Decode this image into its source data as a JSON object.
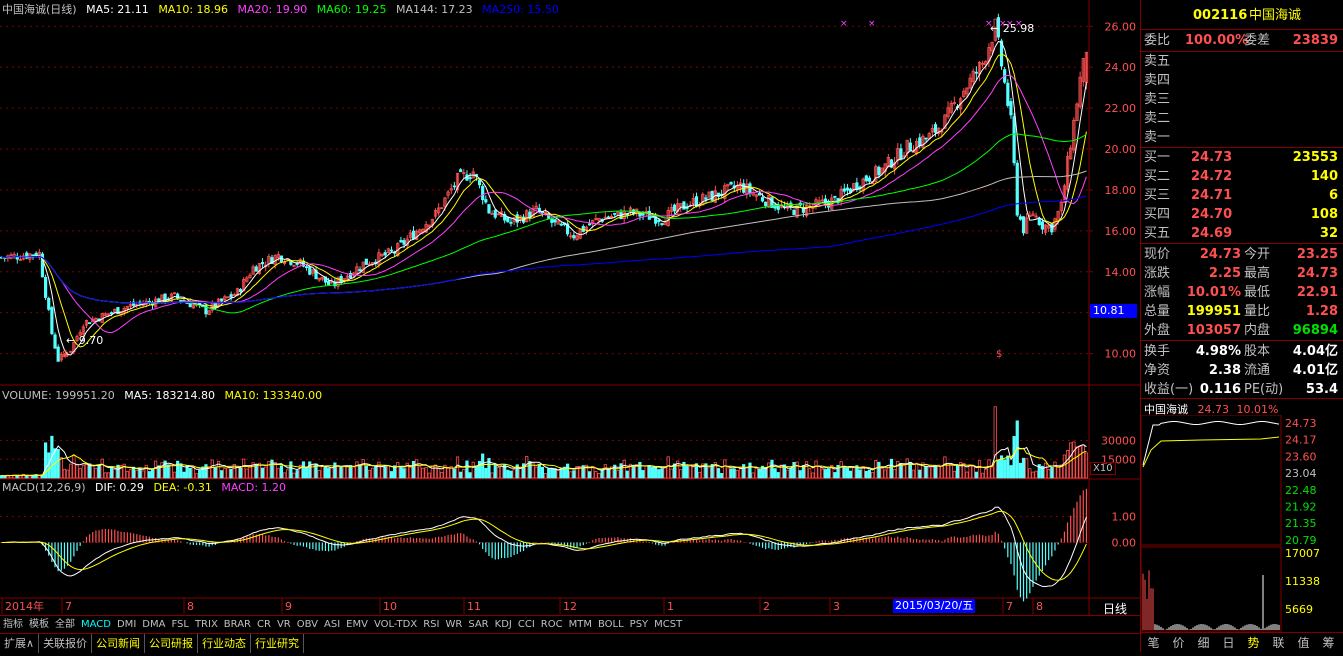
{
  "colors": {
    "up": "#ff5050",
    "down": "#54ffff",
    "ma5": "#ffffff",
    "ma10": "#ffff00",
    "ma20": "#ff40ff",
    "ma60": "#00ff00",
    "ma144": "#c0c0c0",
    "ma250": "#0000ff",
    "grid": "#800000",
    "axis": "#c0c0c0",
    "price": "#ff5050",
    "green": "#00e000",
    "yellow": "#ffff00"
  },
  "price_legend": {
    "name": "中国海诚(日线)",
    "ma5": "MA5: 21.11",
    "ma10": "MA10: 18.96",
    "ma20": "MA20: 19.90",
    "ma60": "MA60: 19.25",
    "ma144": "MA144: 17.23",
    "ma250": "MA250: 15.50"
  },
  "volume_legend": {
    "volume": "VOLUME: 199951.20",
    "ma5": "MA5: 183214.80",
    "ma10": "MA10: 133340.00"
  },
  "macd_legend": {
    "name": "MACD(12,26,9)",
    "dif": "DIF: 0.29",
    "dea": "DEA: -0.31",
    "macd": "MACD: 1.20"
  },
  "annotations": {
    "high": "25.98",
    "low": "9.70",
    "cursor_price": "10.81",
    "cursor_date": "2015/03/20/五",
    "vol_unit": "X10",
    "period": "日线"
  },
  "time_labels": [
    "2014年",
    "7",
    "8",
    "9",
    "10",
    "11",
    "12",
    "1",
    "2",
    "3",
    "7",
    "8"
  ],
  "chart_data": [
    {
      "type": "candlestick",
      "title": "",
      "ylim": [
        9.2,
        26.6
      ],
      "yticks": [
        10.0,
        12.0,
        14.0,
        16.0,
        18.0,
        20.0,
        22.0,
        24.0,
        26.0
      ],
      "ytick_labels": [
        "10.00",
        "12.00",
        "14.00",
        "16.00",
        "18.00",
        "20.00",
        "22.00",
        "24.00",
        "26.00"
      ],
      "anchor_points": [
        [
          0,
          14.7
        ],
        [
          12,
          14.9
        ],
        [
          16,
          11.0
        ],
        [
          18,
          9.7
        ],
        [
          22,
          10.2
        ],
        [
          26,
          11.5
        ],
        [
          40,
          12.3
        ],
        [
          55,
          12.8
        ],
        [
          65,
          12.1
        ],
        [
          75,
          13.0
        ],
        [
          80,
          14.2
        ],
        [
          88,
          14.8
        ],
        [
          95,
          14.4
        ],
        [
          105,
          13.3
        ],
        [
          115,
          14.4
        ],
        [
          125,
          15.0
        ],
        [
          132,
          16.0
        ],
        [
          138,
          16.8
        ],
        [
          145,
          18.5
        ],
        [
          150,
          18.9
        ],
        [
          155,
          17.0
        ],
        [
          162,
          16.4
        ],
        [
          170,
          17.0
        ],
        [
          176,
          16.3
        ],
        [
          182,
          15.8
        ],
        [
          190,
          16.6
        ],
        [
          200,
          16.9
        ],
        [
          210,
          16.6
        ],
        [
          218,
          17.3
        ],
        [
          226,
          17.7
        ],
        [
          235,
          18.2
        ],
        [
          242,
          17.6
        ],
        [
          250,
          17.0
        ],
        [
          258,
          17.2
        ],
        [
          265,
          17.5
        ],
        [
          272,
          18.3
        ],
        [
          280,
          19.0
        ],
        [
          288,
          20.1
        ],
        [
          295,
          20.6
        ],
        [
          300,
          21.4
        ],
        [
          306,
          22.9
        ],
        [
          312,
          24.2
        ],
        [
          316,
          25.98
        ],
        [
          319,
          23.2
        ],
        [
          321,
          21.3
        ],
        [
          323,
          17.0
        ],
        [
          325,
          16.1
        ],
        [
          328,
          16.9
        ],
        [
          331,
          16.3
        ],
        [
          334,
          16.2
        ],
        [
          337,
          17.2
        ],
        [
          339,
          19.3
        ],
        [
          341,
          21.3
        ],
        [
          343,
          23.4
        ],
        [
          345,
          24.73
        ]
      ],
      "ma_labels": [
        "MA5",
        "MA10",
        "MA20",
        "MA60",
        "MA144",
        "MA250"
      ]
    },
    {
      "type": "bar",
      "title": "",
      "ylim": [
        0,
        60000
      ],
      "yticks": [
        15000,
        30000
      ],
      "ytick_labels": [
        "15000",
        "30000"
      ]
    },
    {
      "type": "bar",
      "title": "",
      "ylim": [
        -2.5,
        2.5
      ],
      "yticks": [
        0,
        1
      ],
      "ytick_labels": [
        "0.00",
        "1.00"
      ]
    }
  ],
  "quote": {
    "code": "002116",
    "name": "中国海诚",
    "weibi_label": "委比",
    "weibi": "100.00%",
    "weicha_label": "委差",
    "weicha": "23839",
    "sell": [
      {
        "label": "卖五"
      },
      {
        "label": "卖四"
      },
      {
        "label": "卖三"
      },
      {
        "label": "卖二"
      },
      {
        "label": "卖一"
      }
    ],
    "buy": [
      {
        "label": "买一",
        "price": "24.73",
        "vol": "23553"
      },
      {
        "label": "买二",
        "price": "24.72",
        "vol": "140"
      },
      {
        "label": "买三",
        "price": "24.71",
        "vol": "6"
      },
      {
        "label": "买四",
        "price": "24.70",
        "vol": "108"
      },
      {
        "label": "买五",
        "price": "24.69",
        "vol": "32"
      }
    ],
    "stats": [
      {
        "l1": "现价",
        "v1": "24.73",
        "l2": "今开",
        "v2": "23.25"
      },
      {
        "l1": "涨跌",
        "v1": "2.25",
        "l2": "最高",
        "v2": "24.73"
      },
      {
        "l1": "涨幅",
        "v1": "10.01%",
        "l2": "最低",
        "v2": "22.91"
      },
      {
        "l1": "总量",
        "v1": "199951",
        "l2": "量比",
        "v2": "1.28"
      },
      {
        "l1": "外盘",
        "v1": "103057",
        "l2": "内盘",
        "v2": "96894"
      }
    ],
    "fund": [
      {
        "l1": "换手",
        "v1": "4.98%",
        "l2": "股本",
        "v2": "4.04亿"
      },
      {
        "l1": "净资",
        "v1": "2.38",
        "l2": "流通",
        "v2": "4.01亿"
      },
      {
        "l1": "收益(一)",
        "v1": "0.116",
        "l2": "PE(动)",
        "v2": "53.4"
      }
    ]
  },
  "mini": {
    "name": "中国海诚",
    "price": "24.73",
    "pct": "10.01%",
    "price_ticks": [
      "24.73",
      "24.17",
      "23.60",
      "23.04",
      "22.48",
      "21.92",
      "21.35",
      "20.79"
    ],
    "vol_ticks": [
      "17007",
      "11338",
      "5669"
    ]
  },
  "indicator_tabs": [
    "指标",
    "模板",
    "全部",
    "MACD",
    "DMI",
    "DMA",
    "FSL",
    "TRIX",
    "BRAR",
    "CR",
    "VR",
    "OBV",
    "ASI",
    "EMV",
    "VOL-TDX",
    "RSI",
    "WR",
    "SAR",
    "KDJ",
    "CCI",
    "ROC",
    "MTM",
    "BOLL",
    "PSY",
    "MCST"
  ],
  "bottom_tabs": [
    "扩展∧",
    "关联报价",
    "公司新闻",
    "公司研报",
    "行业动态",
    "行业研究"
  ],
  "rp_tabs": [
    "笔",
    "价",
    "细",
    "日",
    "势",
    "联",
    "值",
    "筹"
  ],
  "zoom": {
    "plus": "+",
    "minus": "-",
    "zero": "0"
  }
}
